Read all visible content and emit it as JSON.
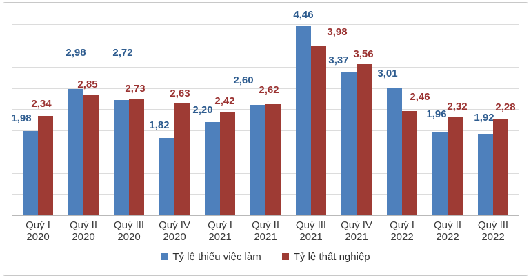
{
  "chart_data": {
    "type": "bar",
    "title": "",
    "categories": [
      {
        "quarter": "Quý I",
        "year": "2020"
      },
      {
        "quarter": "Quý II",
        "year": "2020"
      },
      {
        "quarter": "Quý III",
        "year": "2020"
      },
      {
        "quarter": "Quý IV",
        "year": "2020"
      },
      {
        "quarter": "Quý I",
        "year": "2021"
      },
      {
        "quarter": "Quý II",
        "year": "2021"
      },
      {
        "quarter": "Quý III",
        "year": "2021"
      },
      {
        "quarter": "Quý IV",
        "year": "2021"
      },
      {
        "quarter": "Quý I",
        "year": "2022"
      },
      {
        "quarter": "Quý II",
        "year": "2022"
      },
      {
        "quarter": "Quý III",
        "year": "2022"
      }
    ],
    "series": [
      {
        "name": "Tỷ lệ thiếu việc làm",
        "color": "#4E80BC",
        "label_color": "#2E5C8F",
        "values": [
          1.98,
          2.98,
          2.72,
          1.82,
          2.2,
          2.6,
          4.46,
          3.37,
          3.01,
          1.96,
          1.92
        ],
        "labels": [
          "1,98",
          "2,98",
          "2,72",
          "1,82",
          "2,20",
          "2,60",
          "4,46",
          "3,37",
          "3,01",
          "1,96",
          "1,92"
        ]
      },
      {
        "name": "Tỷ lệ thất nghiệp",
        "color": "#9E3B34",
        "label_color": "#9B3332",
        "values": [
          2.34,
          2.85,
          2.73,
          2.63,
          2.42,
          2.62,
          3.98,
          3.56,
          2.46,
          2.32,
          2.28
        ],
        "labels": [
          "2,34",
          "2,85",
          "2,73",
          "2,63",
          "2,42",
          "2,62",
          "3,98",
          "3,56",
          "2,46",
          "2,32",
          "2,28"
        ]
      }
    ],
    "ylim": [
      0,
      5
    ],
    "gridline_step": 0.5,
    "grid": true,
    "legend_position": "bottom",
    "xlabel": "",
    "ylabel": ""
  }
}
